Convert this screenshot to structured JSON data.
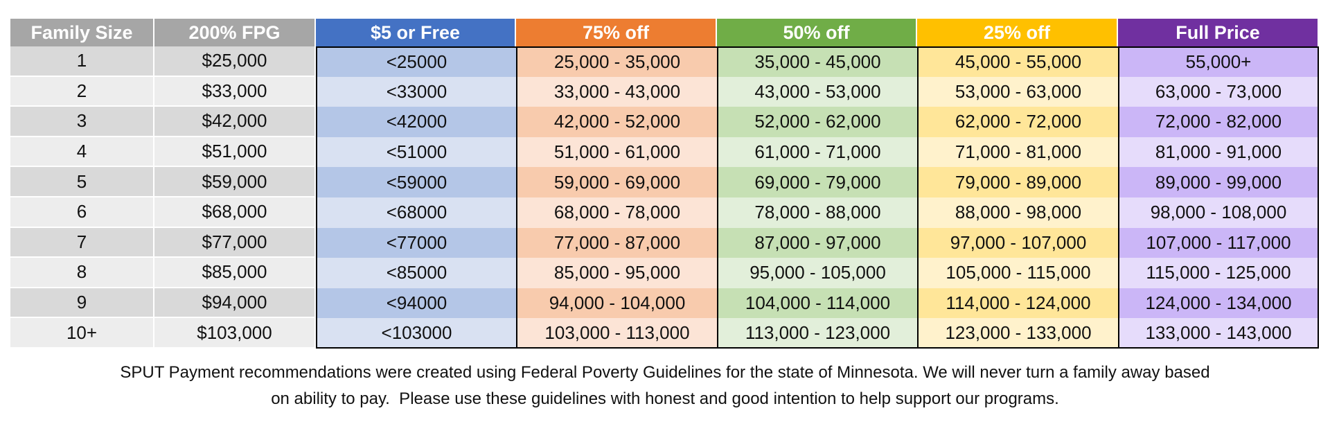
{
  "table": {
    "header": [
      "Family Size",
      "200% FPG",
      "$5 or Free",
      "75% off",
      "50% off",
      "25% off",
      "Full Price"
    ],
    "rows": [
      [
        "1",
        "$25,000",
        "<25000",
        "25,000 - 35,000",
        "35,000 - 45,000",
        "45,000 - 55,000",
        "55,000+"
      ],
      [
        "2",
        "$33,000",
        "<33000",
        "33,000 - 43,000",
        "43,000 - 53,000",
        "53,000 - 63,000",
        "63,000 - 73,000"
      ],
      [
        "3",
        "$42,000",
        "<42000",
        "42,000 - 52,000",
        "52,000 - 62,000",
        "62,000 - 72,000",
        "72,000 - 82,000"
      ],
      [
        "4",
        "$51,000",
        "<51000",
        "51,000 - 61,000",
        "61,000 - 71,000",
        "71,000 - 81,000",
        "81,000 - 91,000"
      ],
      [
        "5",
        "$59,000",
        "<59000",
        "59,000 - 69,000",
        "69,000 - 79,000",
        "79,000 - 89,000",
        "89,000 - 99,000"
      ],
      [
        "6",
        "$68,000",
        "<68000",
        "68,000 - 78,000",
        "78,000 - 88,000",
        "88,000 - 98,000",
        "98,000 - 108,000"
      ],
      [
        "7",
        "$77,000",
        "<77000",
        "77,000 - 87,000",
        "87,000 - 97,000",
        "97,000 - 107,000",
        "107,000 - 117,000"
      ],
      [
        "8",
        "$85,000",
        "<85000",
        "85,000 - 95,000",
        "95,000 - 105,000",
        "105,000 - 115,000",
        "115,000 - 125,000"
      ],
      [
        "9",
        "$94,000",
        "<94000",
        "94,000 - 104,000",
        "104,000 - 114,000",
        "114,000 - 124,000",
        "124,000 - 134,000"
      ],
      [
        "10+",
        "$103,000",
        "<103000",
        "103,000 - 113,000",
        "113,000 - 123,000",
        "123,000 - 133,000",
        "133,000 - 143,000"
      ]
    ]
  },
  "footer": {
    "lines": [
      "SPUT Payment recommendations were created using Federal Poverty Guidelines for the state of Minnesota. We will never turn a family away based",
      "on ability to pay.  Please use these guidelines with honest and good intention to help support our programs."
    ]
  }
}
